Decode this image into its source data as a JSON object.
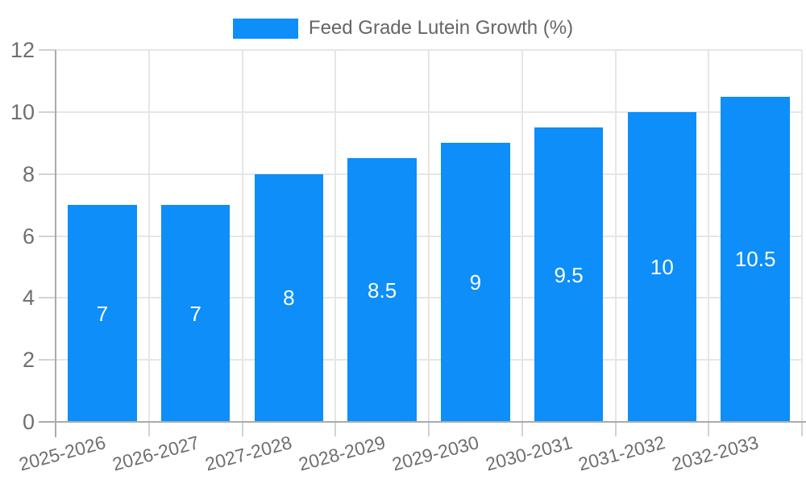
{
  "chart_data": {
    "type": "bar",
    "title": "",
    "legend": {
      "label": "Feed Grade Lutein Growth (%)",
      "position": "top"
    },
    "categories": [
      "2025-2026",
      "2026-2027",
      "2027-2028",
      "2028-2029",
      "2029-2030",
      "2030-2031",
      "2031-2032",
      "2032-2033"
    ],
    "series": [
      {
        "name": "Feed Grade Lutein Growth (%)",
        "values": [
          7,
          7,
          8,
          8.5,
          9,
          9.5,
          10,
          10.5
        ]
      }
    ],
    "value_labels": [
      "7",
      "7",
      "8",
      "8.5",
      "9",
      "9.5",
      "10",
      "10.5"
    ],
    "xlabel": "",
    "ylabel": "",
    "ylim": [
      0,
      12
    ],
    "yticks": [
      0,
      2,
      4,
      6,
      8,
      10,
      12
    ],
    "grid": true,
    "x_label_rotation_deg": -15,
    "colors": {
      "bar": "#0d8ef8",
      "bar_label": "#ffffff",
      "grid": "#e6e6e6",
      "axis": "#ababab",
      "tick": "#d2d2d2",
      "tick_label": "#6f6f6f",
      "legend_text": "#666666",
      "background": "#ffffff"
    }
  }
}
